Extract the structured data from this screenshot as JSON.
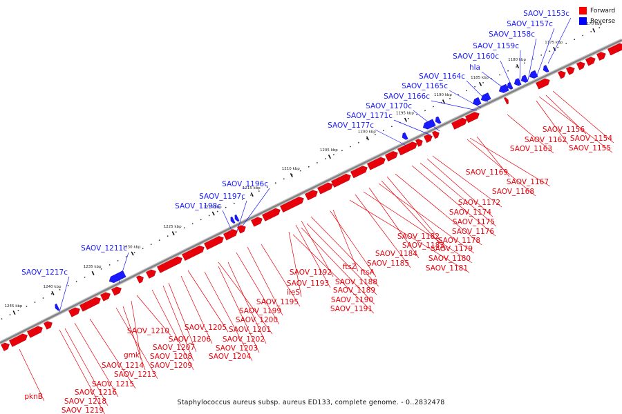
{
  "caption": "Staphylococcus aureus subsp. aureus ED133, complete genome. - 0..2832478",
  "legend": [
    {
      "label": "Forward",
      "color": "#ff0000"
    },
    {
      "label": "Reverse",
      "color": "#0000ff"
    }
  ],
  "colors": {
    "forward": "#e8000b",
    "reverse": "#1a1aff",
    "backbone": "#808080",
    "tick": "#111111"
  },
  "ticks": [
    "1170 kbp",
    "1175 kbp",
    "1180 kbp",
    "1185 kbp",
    "1190 kbp",
    "1195 kbp",
    "1200 kbp",
    "1205 kbp",
    "1210 kbp",
    "1215 kbp",
    "1220 kbp",
    "1225 kbp",
    "1230 kbp",
    "1235 kbp",
    "1240 kbp",
    "1245 kbp"
  ],
  "reverse_labels": [
    "SAOV_1153c",
    "SAOV_1157c",
    "SAOV_1158c",
    "SAOV_1159c",
    "SAOV_1160c",
    "hla",
    "SAOV_1164c",
    "SAOV_1165c",
    "SAOV_1166c",
    "SAOV_1170c",
    "SAOV_1171c",
    "SAOV_1177c",
    "SAOV_1196c",
    "SAOV_1197c",
    "SAOV_1198c",
    "SAOV_1211c",
    "SAOV_1217c"
  ],
  "forward_labels": [
    "SAOV_1156",
    "SAOV_1154",
    "SAOV_1162",
    "SAOV_1155",
    "SAOV_1163",
    "SAOV_1169",
    "SAOV_1167",
    "SAOV_1168",
    "SAOV_1172",
    "SAOV_1174",
    "SAOV_1175",
    "SAOV_1176",
    "SAOV_1178",
    "SAOV_1182",
    "SAOV_1183",
    "SAOV_1179",
    "SAOV_1184",
    "SAOV_1180",
    "SAOV_1185",
    "SAOV_1181",
    "ftsZ",
    "ftsA",
    "SAOV_1192",
    "SAOV_1188",
    "SAOV_1193",
    "SAOV_1189",
    "ileS",
    "SAOV_1190",
    "SAOV_1195",
    "SAOV_1191",
    "SAOV_1199",
    "SAOV_1200",
    "SAOV_1205",
    "SAOV_1201",
    "SAOV_1210",
    "SAOV_1206",
    "SAOV_1202",
    "SAOV_1207",
    "SAOV_1203",
    "SAOV_1208",
    "SAOV_1204",
    "gmk",
    "SAOV_1209",
    "SAOV_1214",
    "SAOV_1213",
    "SAOV_1215",
    "SAOV_1216",
    "pknB",
    "SAOV_1218",
    "SAOV_1219"
  ]
}
